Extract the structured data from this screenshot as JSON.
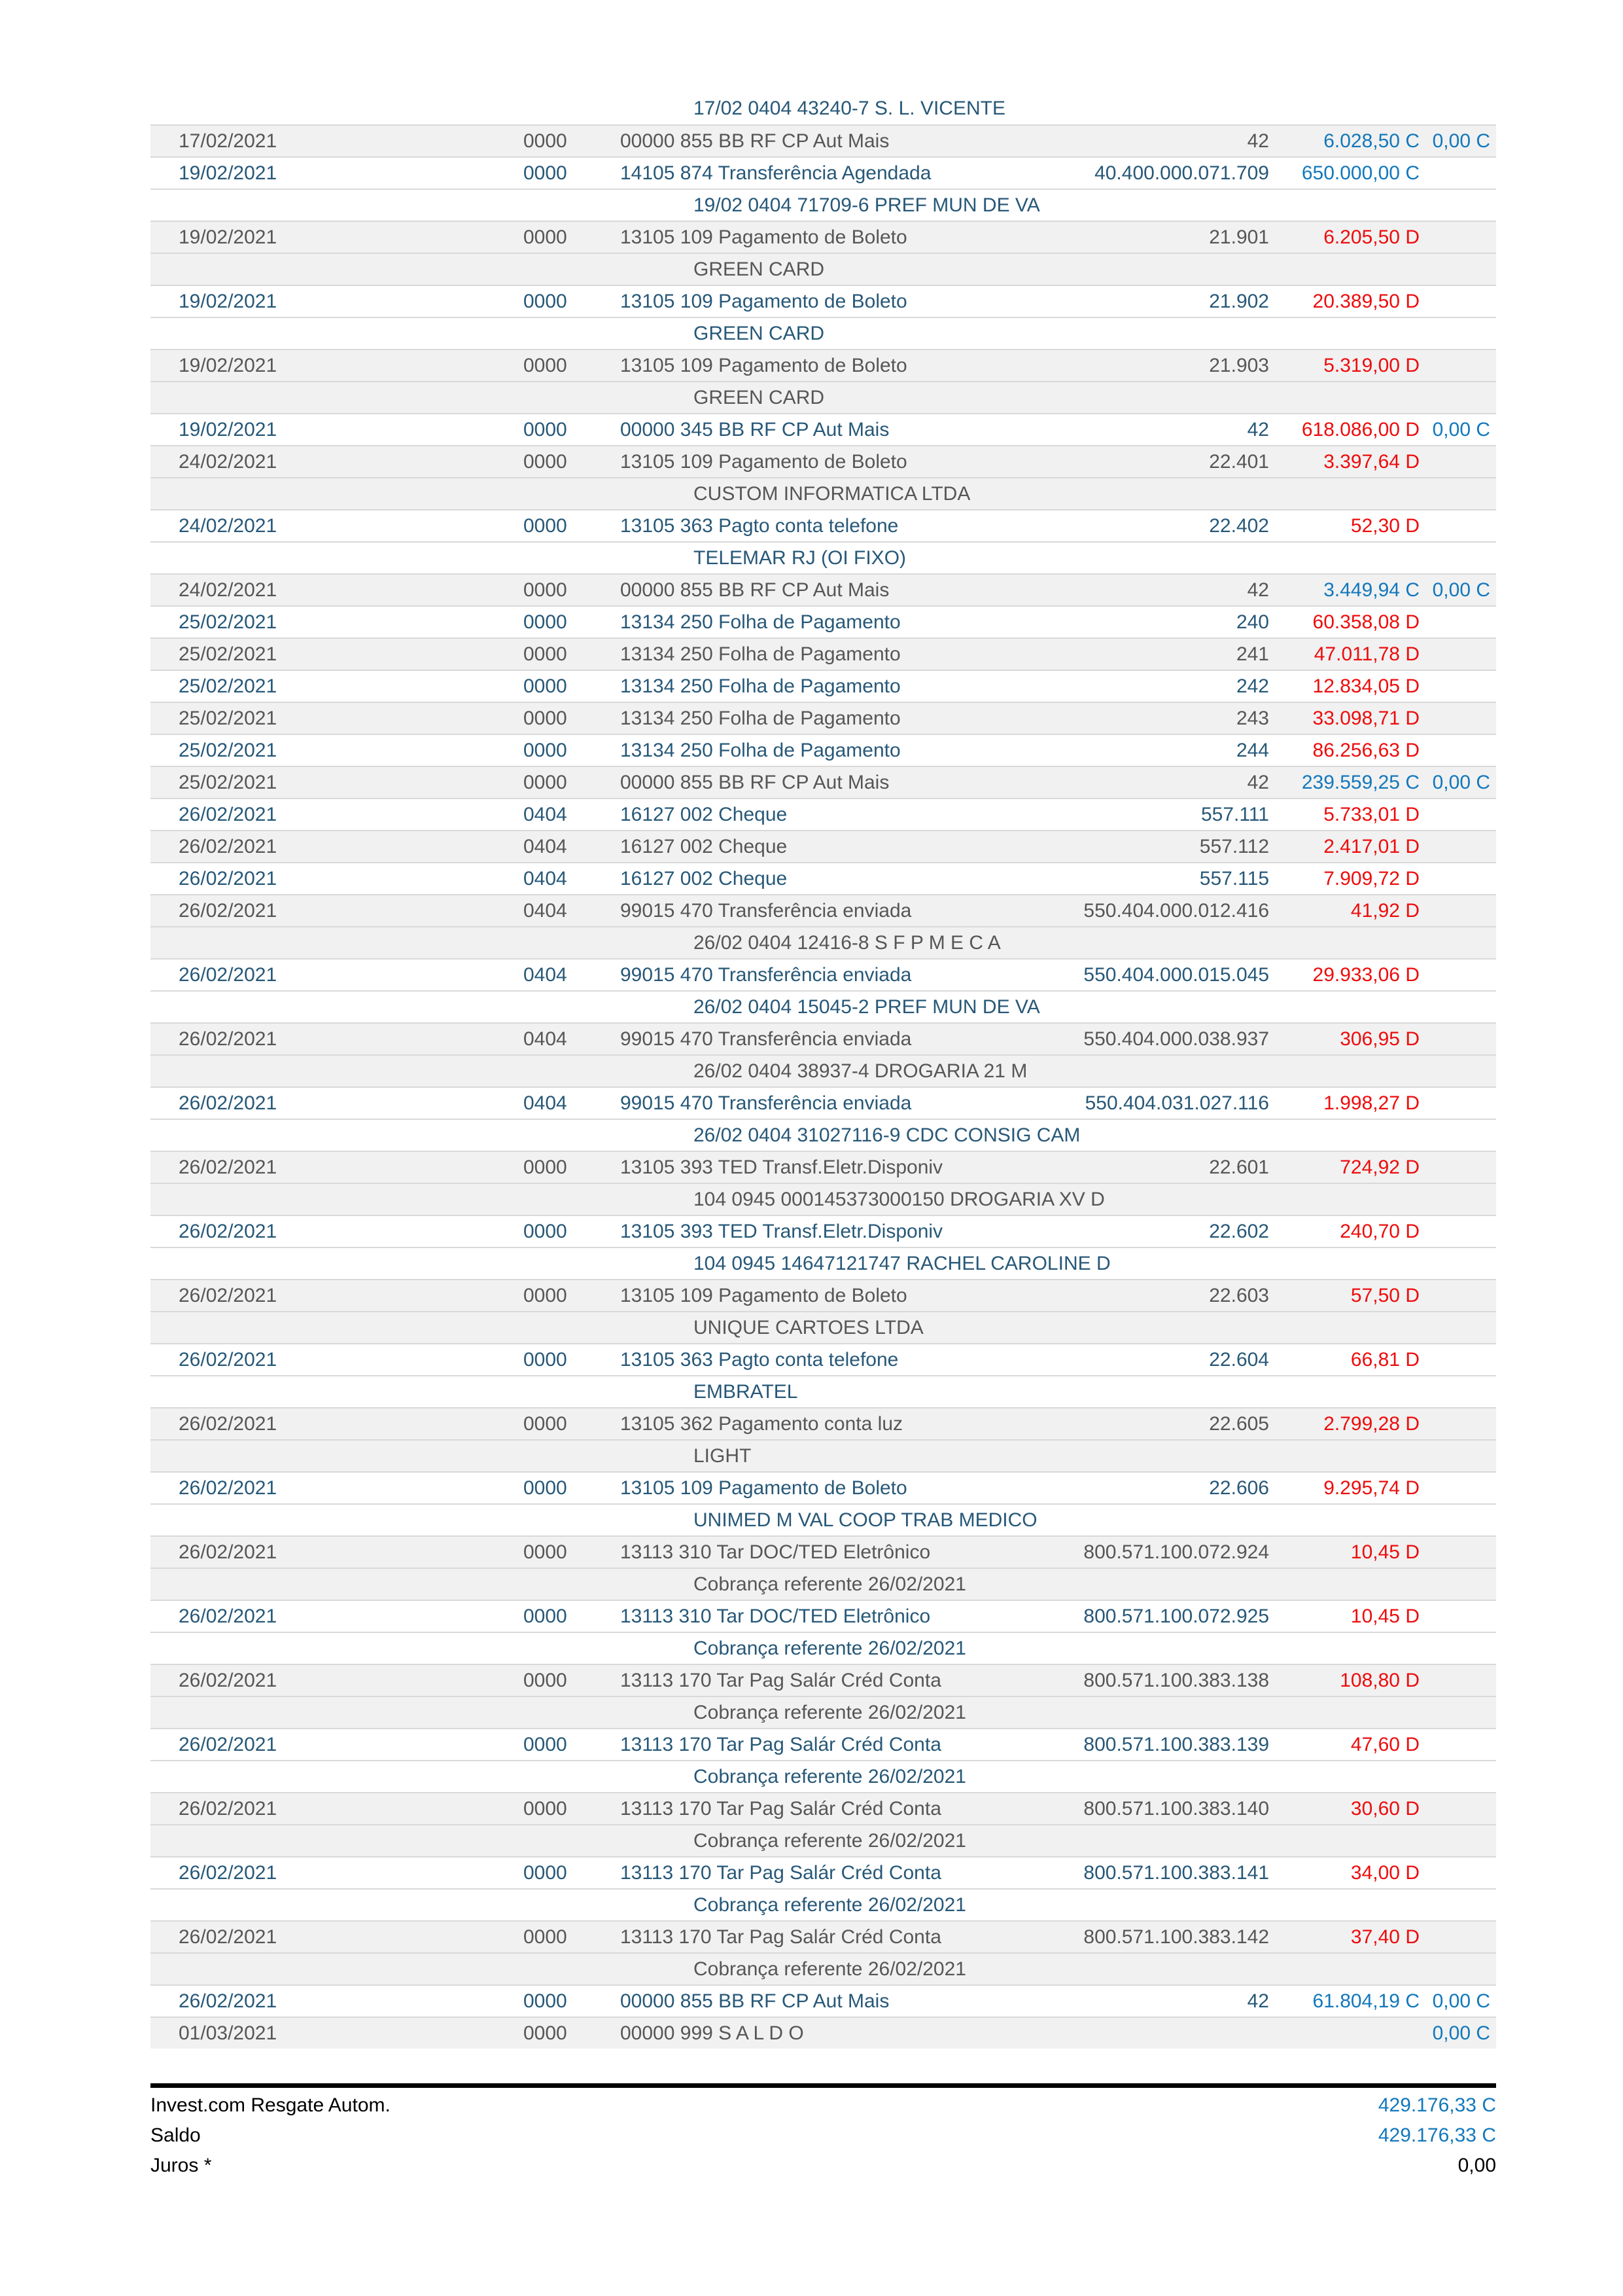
{
  "colors": {
    "credit_blue": "#1278bc",
    "debit_red": "#ee0c0c",
    "row_text_navy": "#275878",
    "row_text_gray": "#565656",
    "row_shade_bg": "#f1f1f1"
  },
  "table": {
    "rows": [
      {
        "type": "detail",
        "text": "17/02 0404 43240-7 S. L. VICENTE"
      },
      {
        "type": "tx",
        "date": "17/02/2021",
        "agency": "0000",
        "desc": "00000 855 BB RF CP Aut Mais",
        "doc": "42",
        "value": "6.028,50 C",
        "balance": "0,00 C"
      },
      {
        "type": "tx",
        "date": "19/02/2021",
        "agency": "0000",
        "desc": "14105 874 Transferência Agendada",
        "doc": "40.400.000.071.709",
        "value": "650.000,00 C",
        "balance": ""
      },
      {
        "type": "detail",
        "text": "19/02 0404 71709-6 PREF MUN DE VA"
      },
      {
        "type": "tx",
        "date": "19/02/2021",
        "agency": "0000",
        "desc": "13105 109 Pagamento de Boleto",
        "doc": "21.901",
        "value": "6.205,50 D",
        "balance": ""
      },
      {
        "type": "detail",
        "text": "GREEN CARD"
      },
      {
        "type": "tx",
        "date": "19/02/2021",
        "agency": "0000",
        "desc": "13105 109 Pagamento de Boleto",
        "doc": "21.902",
        "value": "20.389,50 D",
        "balance": ""
      },
      {
        "type": "detail",
        "text": "GREEN CARD"
      },
      {
        "type": "tx",
        "date": "19/02/2021",
        "agency": "0000",
        "desc": "13105 109 Pagamento de Boleto",
        "doc": "21.903",
        "value": "5.319,00 D",
        "balance": ""
      },
      {
        "type": "detail",
        "text": "GREEN CARD"
      },
      {
        "type": "tx",
        "date": "19/02/2021",
        "agency": "0000",
        "desc": "00000 345 BB RF CP Aut Mais",
        "doc": "42",
        "value": "618.086,00 D",
        "balance": "0,00 C"
      },
      {
        "type": "tx",
        "date": "24/02/2021",
        "agency": "0000",
        "desc": "13105 109 Pagamento de Boleto",
        "doc": "22.401",
        "value": "3.397,64 D",
        "balance": ""
      },
      {
        "type": "detail",
        "text": "CUSTOM INFORMATICA LTDA"
      },
      {
        "type": "tx",
        "date": "24/02/2021",
        "agency": "0000",
        "desc": "13105 363 Pagto conta telefone",
        "doc": "22.402",
        "value": "52,30 D",
        "balance": ""
      },
      {
        "type": "detail",
        "text": "TELEMAR RJ (OI FIXO)"
      },
      {
        "type": "tx",
        "date": "24/02/2021",
        "agency": "0000",
        "desc": "00000 855 BB RF CP Aut Mais",
        "doc": "42",
        "value": "3.449,94 C",
        "balance": "0,00 C"
      },
      {
        "type": "tx",
        "date": "25/02/2021",
        "agency": "0000",
        "desc": "13134 250 Folha de Pagamento",
        "doc": "240",
        "value": "60.358,08 D",
        "balance": ""
      },
      {
        "type": "tx",
        "date": "25/02/2021",
        "agency": "0000",
        "desc": "13134 250 Folha de Pagamento",
        "doc": "241",
        "value": "47.011,78 D",
        "balance": ""
      },
      {
        "type": "tx",
        "date": "25/02/2021",
        "agency": "0000",
        "desc": "13134 250 Folha de Pagamento",
        "doc": "242",
        "value": "12.834,05 D",
        "balance": ""
      },
      {
        "type": "tx",
        "date": "25/02/2021",
        "agency": "0000",
        "desc": "13134 250 Folha de Pagamento",
        "doc": "243",
        "value": "33.098,71 D",
        "balance": ""
      },
      {
        "type": "tx",
        "date": "25/02/2021",
        "agency": "0000",
        "desc": "13134 250 Folha de Pagamento",
        "doc": "244",
        "value": "86.256,63 D",
        "balance": ""
      },
      {
        "type": "tx",
        "date": "25/02/2021",
        "agency": "0000",
        "desc": "00000 855 BB RF CP Aut Mais",
        "doc": "42",
        "value": "239.559,25 C",
        "balance": "0,00 C"
      },
      {
        "type": "tx",
        "date": "26/02/2021",
        "agency": "0404",
        "desc": "16127 002 Cheque",
        "doc": "557.111",
        "value": "5.733,01 D",
        "balance": ""
      },
      {
        "type": "tx",
        "date": "26/02/2021",
        "agency": "0404",
        "desc": "16127 002 Cheque",
        "doc": "557.112",
        "value": "2.417,01 D",
        "balance": ""
      },
      {
        "type": "tx",
        "date": "26/02/2021",
        "agency": "0404",
        "desc": "16127 002 Cheque",
        "doc": "557.115",
        "value": "7.909,72 D",
        "balance": ""
      },
      {
        "type": "tx",
        "date": "26/02/2021",
        "agency": "0404",
        "desc": "99015 470 Transferência enviada",
        "doc": "550.404.000.012.416",
        "value": "41,92 D",
        "balance": ""
      },
      {
        "type": "detail",
        "text": "26/02 0404 12416-8 S F P M E C A"
      },
      {
        "type": "tx",
        "date": "26/02/2021",
        "agency": "0404",
        "desc": "99015 470 Transferência enviada",
        "doc": "550.404.000.015.045",
        "value": "29.933,06 D",
        "balance": ""
      },
      {
        "type": "detail",
        "text": "26/02 0404 15045-2 PREF MUN DE VA"
      },
      {
        "type": "tx",
        "date": "26/02/2021",
        "agency": "0404",
        "desc": "99015 470 Transferência enviada",
        "doc": "550.404.000.038.937",
        "value": "306,95 D",
        "balance": ""
      },
      {
        "type": "detail",
        "text": "26/02 0404 38937-4 DROGARIA 21 M"
      },
      {
        "type": "tx",
        "date": "26/02/2021",
        "agency": "0404",
        "desc": "99015 470 Transferência enviada",
        "doc": "550.404.031.027.116",
        "value": "1.998,27 D",
        "balance": ""
      },
      {
        "type": "detail",
        "text": "26/02 0404 31027116-9 CDC CONSIG CAM"
      },
      {
        "type": "tx",
        "date": "26/02/2021",
        "agency": "0000",
        "desc": "13105 393 TED Transf.Eletr.Disponiv",
        "doc": "22.601",
        "value": "724,92 D",
        "balance": ""
      },
      {
        "type": "detail",
        "text": "104 0945 000145373000150 DROGARIA XV D"
      },
      {
        "type": "tx",
        "date": "26/02/2021",
        "agency": "0000",
        "desc": "13105 393 TED Transf.Eletr.Disponiv",
        "doc": "22.602",
        "value": "240,70 D",
        "balance": ""
      },
      {
        "type": "detail",
        "text": "104 0945 14647121747 RACHEL CAROLINE D"
      },
      {
        "type": "tx",
        "date": "26/02/2021",
        "agency": "0000",
        "desc": "13105 109 Pagamento de Boleto",
        "doc": "22.603",
        "value": "57,50 D",
        "balance": ""
      },
      {
        "type": "detail",
        "text": "UNIQUE CARTOES LTDA"
      },
      {
        "type": "tx",
        "date": "26/02/2021",
        "agency": "0000",
        "desc": "13105 363 Pagto conta telefone",
        "doc": "22.604",
        "value": "66,81 D",
        "balance": ""
      },
      {
        "type": "detail",
        "text": "EMBRATEL"
      },
      {
        "type": "tx",
        "date": "26/02/2021",
        "agency": "0000",
        "desc": "13105 362 Pagamento conta luz",
        "doc": "22.605",
        "value": "2.799,28 D",
        "balance": ""
      },
      {
        "type": "detail",
        "text": "LIGHT"
      },
      {
        "type": "tx",
        "date": "26/02/2021",
        "agency": "0000",
        "desc": "13105 109 Pagamento de Boleto",
        "doc": "22.606",
        "value": "9.295,74 D",
        "balance": ""
      },
      {
        "type": "detail",
        "text": "UNIMED M VAL COOP TRAB MEDICO"
      },
      {
        "type": "tx",
        "date": "26/02/2021",
        "agency": "0000",
        "desc": "13113 310 Tar DOC/TED Eletrônico",
        "doc": "800.571.100.072.924",
        "value": "10,45 D",
        "balance": ""
      },
      {
        "type": "detail",
        "text": "Cobrança referente 26/02/2021"
      },
      {
        "type": "tx",
        "date": "26/02/2021",
        "agency": "0000",
        "desc": "13113 310 Tar DOC/TED Eletrônico",
        "doc": "800.571.100.072.925",
        "value": "10,45 D",
        "balance": ""
      },
      {
        "type": "detail",
        "text": "Cobrança referente 26/02/2021"
      },
      {
        "type": "tx",
        "date": "26/02/2021",
        "agency": "0000",
        "desc": "13113 170 Tar Pag Salár Créd Conta",
        "doc": "800.571.100.383.138",
        "value": "108,80 D",
        "balance": ""
      },
      {
        "type": "detail",
        "text": "Cobrança referente 26/02/2021"
      },
      {
        "type": "tx",
        "date": "26/02/2021",
        "agency": "0000",
        "desc": "13113 170 Tar Pag Salár Créd Conta",
        "doc": "800.571.100.383.139",
        "value": "47,60 D",
        "balance": ""
      },
      {
        "type": "detail",
        "text": "Cobrança referente 26/02/2021"
      },
      {
        "type": "tx",
        "date": "26/02/2021",
        "agency": "0000",
        "desc": "13113 170 Tar Pag Salár Créd Conta",
        "doc": "800.571.100.383.140",
        "value": "30,60 D",
        "balance": ""
      },
      {
        "type": "detail",
        "text": "Cobrança referente 26/02/2021"
      },
      {
        "type": "tx",
        "date": "26/02/2021",
        "agency": "0000",
        "desc": "13113 170 Tar Pag Salár Créd Conta",
        "doc": "800.571.100.383.141",
        "value": "34,00 D",
        "balance": ""
      },
      {
        "type": "detail",
        "text": "Cobrança referente 26/02/2021"
      },
      {
        "type": "tx",
        "date": "26/02/2021",
        "agency": "0000",
        "desc": "13113 170 Tar Pag Salár Créd Conta",
        "doc": "800.571.100.383.142",
        "value": "37,40 D",
        "balance": ""
      },
      {
        "type": "detail",
        "text": "Cobrança referente 26/02/2021"
      },
      {
        "type": "tx",
        "date": "26/02/2021",
        "agency": "0000",
        "desc": "00000 855 BB RF CP Aut Mais",
        "doc": "42",
        "value": "61.804,19 C",
        "balance": "0,00 C"
      },
      {
        "type": "tx",
        "date": "01/03/2021",
        "agency": "0000",
        "desc": "00000 999 S A L D O",
        "doc": "",
        "value": "",
        "balance": "0,00 C"
      }
    ]
  },
  "footer": {
    "rows": [
      {
        "label": "Invest.com Resgate Autom.",
        "value": "429.176,33 C",
        "value_style": "credit"
      },
      {
        "label": "Saldo",
        "value": "429.176,33 C",
        "value_style": "credit"
      },
      {
        "label": "Juros *",
        "value": "0,00",
        "value_style": "plain"
      }
    ]
  }
}
